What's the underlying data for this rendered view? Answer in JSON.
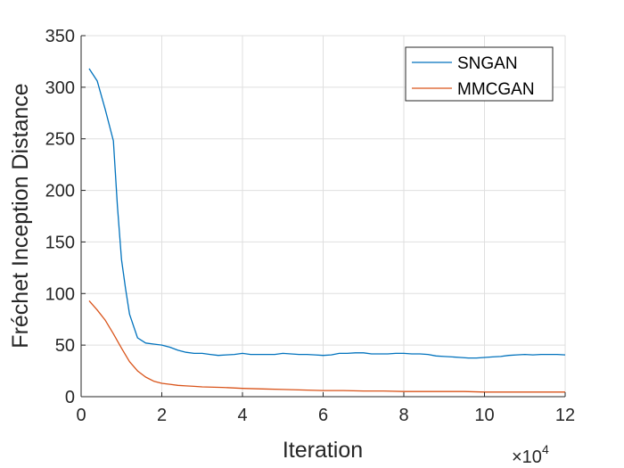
{
  "chart_data": {
    "type": "line",
    "title": "",
    "xlabel": "Iteration",
    "ylabel": "Fréchet Inception Distance",
    "x_exponent_label": "×10",
    "x_exponent_power": "4",
    "xlim": [
      0,
      12
    ],
    "ylim": [
      0,
      350
    ],
    "xticks": [
      0,
      2,
      4,
      6,
      8,
      10,
      12
    ],
    "yticks": [
      0,
      50,
      100,
      150,
      200,
      250,
      300,
      350
    ],
    "grid": true,
    "legend_position": "top-right",
    "series": [
      {
        "name": "SNGAN",
        "color": "#0072BD",
        "x": [
          0.2,
          0.4,
          0.6,
          0.8,
          0.9,
          1.0,
          1.1,
          1.2,
          1.4,
          1.6,
          1.8,
          2.0,
          2.2,
          2.4,
          2.6,
          2.8,
          3.0,
          3.2,
          3.4,
          3.6,
          3.8,
          4.0,
          4.2,
          4.4,
          4.6,
          4.8,
          5.0,
          5.2,
          5.4,
          5.6,
          5.8,
          6.0,
          6.2,
          6.4,
          6.6,
          6.8,
          7.0,
          7.2,
          7.4,
          7.6,
          7.8,
          8.0,
          8.2,
          8.4,
          8.6,
          8.8,
          9.0,
          9.2,
          9.4,
          9.6,
          9.8,
          10.0,
          10.2,
          10.4,
          10.6,
          10.8,
          11.0,
          11.2,
          11.4,
          11.6,
          11.8,
          12.0
        ],
        "y": [
          318,
          306,
          278,
          248,
          185,
          133,
          105,
          80,
          57,
          52,
          51,
          50,
          48,
          45,
          43,
          42,
          42,
          41,
          40,
          40.5,
          41,
          42,
          41,
          41,
          41,
          41,
          42,
          41.5,
          41,
          41,
          40.5,
          40,
          40.5,
          42,
          42,
          42.5,
          42.5,
          41.5,
          41.5,
          41.5,
          42,
          42,
          41.5,
          41.5,
          41,
          39.5,
          39,
          38.5,
          38,
          37.5,
          37.5,
          38,
          38.5,
          39,
          40,
          40.5,
          41,
          40.5,
          41,
          41,
          41,
          40.5
        ]
      },
      {
        "name": "MMCGAN",
        "color": "#D95319",
        "x": [
          0.2,
          0.4,
          0.6,
          0.8,
          1.0,
          1.2,
          1.4,
          1.6,
          1.8,
          2.0,
          2.2,
          2.4,
          2.6,
          2.8,
          3.0,
          3.5,
          4.0,
          4.5,
          5.0,
          5.5,
          6.0,
          6.5,
          7.0,
          7.5,
          8.0,
          8.5,
          9.0,
          9.5,
          10.0,
          10.5,
          11.0,
          11.5,
          12.0
        ],
        "y": [
          93,
          84,
          74,
          61,
          47,
          34,
          25,
          19,
          15,
          13,
          12,
          11,
          10.5,
          10,
          9.5,
          9,
          8,
          7.5,
          7,
          6.5,
          6,
          6,
          5.5,
          5.5,
          5,
          5,
          5,
          5,
          4.5,
          4.5,
          4.5,
          4.5,
          4.5
        ]
      }
    ]
  }
}
